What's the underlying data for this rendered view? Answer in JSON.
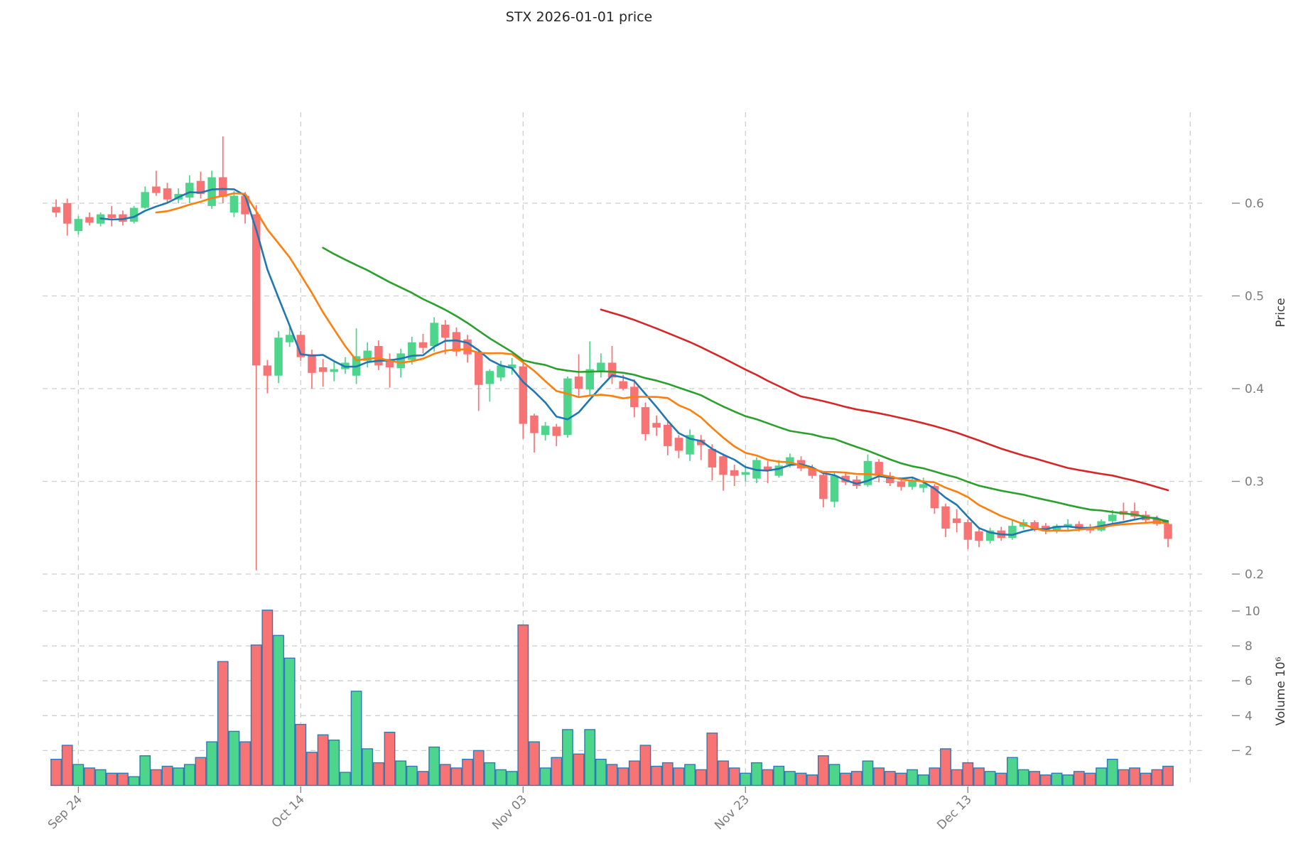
{
  "title": "STX  2026-01-01  price",
  "price_axis": {
    "label": "Price",
    "ticks": [
      0.2,
      0.3,
      0.4,
      0.5,
      0.6
    ]
  },
  "volume_axis": {
    "label": "Volume  10⁶",
    "ticks": [
      2,
      4,
      6,
      8,
      10
    ]
  },
  "x_axis": {
    "ticks": [
      {
        "label": "Sep 24",
        "index": 2
      },
      {
        "label": "Oct 14",
        "index": 22
      },
      {
        "label": "Nov 03",
        "index": 42
      },
      {
        "label": "Nov 23",
        "index": 62
      },
      {
        "label": "Dec 13",
        "index": 82
      }
    ],
    "extra_gridline_index": 102
  },
  "chart_data": {
    "type": "candlestick+volume",
    "title": "STX  2026-01-01  price",
    "start_date": "2025-09-22",
    "end_date": "2025-12-31",
    "frequency": "daily",
    "ylabel": "Price",
    "ylabel_volume": "Volume  10⁶",
    "price_ylim": [
      0.19,
      0.7
    ],
    "volume_ylim_millions": [
      0,
      10.8
    ],
    "grid": "dashed",
    "legend_position": "none",
    "open": [
      0.596,
      0.6,
      0.57,
      0.585,
      0.578,
      0.588,
      0.588,
      0.58,
      0.595,
      0.618,
      0.616,
      0.604,
      0.606,
      0.624,
      0.597,
      0.628,
      0.59,
      0.608,
      0.588,
      0.425,
      0.414,
      0.45,
      0.458,
      0.437,
      0.423,
      0.418,
      0.421,
      0.414,
      0.43,
      0.446,
      0.432,
      0.422,
      0.431,
      0.45,
      0.446,
      0.469,
      0.461,
      0.453,
      0.439,
      0.405,
      0.412,
      0.422,
      0.424,
      0.371,
      0.35,
      0.359,
      0.35,
      0.413,
      0.399,
      0.418,
      0.428,
      0.408,
      0.402,
      0.38,
      0.363,
      0.361,
      0.347,
      0.329,
      0.345,
      0.335,
      0.327,
      0.312,
      0.307,
      0.303,
      0.316,
      0.306,
      0.318,
      0.323,
      0.314,
      0.307,
      0.278,
      0.306,
      0.302,
      0.296,
      0.321,
      0.306,
      0.3,
      0.294,
      0.293,
      0.295,
      0.273,
      0.26,
      0.256,
      0.246,
      0.236,
      0.247,
      0.239,
      0.251,
      0.256,
      0.252,
      0.246,
      0.252,
      0.254,
      0.251,
      0.247,
      0.257,
      0.268,
      0.268,
      0.264,
      0.26,
      0.254
    ],
    "high": [
      0.604,
      0.605,
      0.586,
      0.59,
      0.59,
      0.597,
      0.592,
      0.597,
      0.618,
      0.635,
      0.622,
      0.616,
      0.63,
      0.634,
      0.635,
      0.672,
      0.613,
      0.612,
      0.598,
      0.431,
      0.462,
      0.468,
      0.462,
      0.442,
      0.432,
      0.43,
      0.434,
      0.465,
      0.45,
      0.452,
      0.438,
      0.443,
      0.456,
      0.459,
      0.477,
      0.474,
      0.466,
      0.458,
      0.441,
      0.421,
      0.43,
      0.433,
      0.43,
      0.373,
      0.364,
      0.362,
      0.413,
      0.437,
      0.451,
      0.438,
      0.446,
      0.415,
      0.41,
      0.385,
      0.371,
      0.366,
      0.35,
      0.356,
      0.35,
      0.34,
      0.33,
      0.318,
      0.317,
      0.326,
      0.322,
      0.323,
      0.33,
      0.327,
      0.318,
      0.31,
      0.311,
      0.31,
      0.306,
      0.329,
      0.324,
      0.31,
      0.304,
      0.305,
      0.304,
      0.297,
      0.276,
      0.27,
      0.259,
      0.249,
      0.25,
      0.251,
      0.259,
      0.259,
      0.258,
      0.255,
      0.254,
      0.259,
      0.257,
      0.254,
      0.259,
      0.269,
      0.277,
      0.277,
      0.268,
      0.263,
      0.258
    ],
    "low": [
      0.585,
      0.565,
      0.566,
      0.576,
      0.575,
      0.575,
      0.576,
      0.578,
      0.594,
      0.608,
      0.6,
      0.6,
      0.6,
      0.605,
      0.594,
      0.6,
      0.585,
      0.578,
      0.204,
      0.395,
      0.406,
      0.445,
      0.43,
      0.4,
      0.402,
      0.408,
      0.416,
      0.405,
      0.423,
      0.42,
      0.401,
      0.412,
      0.426,
      0.438,
      0.44,
      0.437,
      0.435,
      0.428,
      0.376,
      0.386,
      0.408,
      0.415,
      0.346,
      0.331,
      0.344,
      0.338,
      0.347,
      0.392,
      0.392,
      0.412,
      0.405,
      0.398,
      0.369,
      0.344,
      0.349,
      0.328,
      0.325,
      0.322,
      0.323,
      0.301,
      0.29,
      0.295,
      0.3,
      0.298,
      0.298,
      0.304,
      0.315,
      0.311,
      0.303,
      0.272,
      0.272,
      0.296,
      0.292,
      0.294,
      0.299,
      0.295,
      0.29,
      0.291,
      0.288,
      0.265,
      0.24,
      0.245,
      0.227,
      0.229,
      0.233,
      0.236,
      0.237,
      0.248,
      0.246,
      0.243,
      0.244,
      0.247,
      0.246,
      0.244,
      0.246,
      0.255,
      0.258,
      0.26,
      0.256,
      0.252,
      0.229
    ],
    "close": [
      0.59,
      0.578,
      0.583,
      0.579,
      0.588,
      0.584,
      0.58,
      0.595,
      0.612,
      0.611,
      0.604,
      0.61,
      0.622,
      0.61,
      0.628,
      0.607,
      0.608,
      0.588,
      0.425,
      0.414,
      0.455,
      0.458,
      0.434,
      0.417,
      0.418,
      0.421,
      0.428,
      0.435,
      0.441,
      0.425,
      0.423,
      0.438,
      0.45,
      0.444,
      0.471,
      0.455,
      0.44,
      0.437,
      0.404,
      0.419,
      0.425,
      0.426,
      0.362,
      0.352,
      0.36,
      0.349,
      0.411,
      0.4,
      0.421,
      0.428,
      0.412,
      0.4,
      0.38,
      0.351,
      0.358,
      0.338,
      0.333,
      0.35,
      0.339,
      0.315,
      0.307,
      0.306,
      0.31,
      0.323,
      0.312,
      0.317,
      0.326,
      0.314,
      0.306,
      0.281,
      0.306,
      0.299,
      0.295,
      0.322,
      0.306,
      0.298,
      0.294,
      0.301,
      0.297,
      0.271,
      0.249,
      0.255,
      0.237,
      0.236,
      0.247,
      0.239,
      0.252,
      0.256,
      0.249,
      0.246,
      0.252,
      0.254,
      0.249,
      0.247,
      0.257,
      0.264,
      0.264,
      0.262,
      0.258,
      0.254,
      0.238
    ],
    "volume_millions": [
      1.5,
      2.3,
      1.2,
      1.0,
      0.9,
      0.7,
      0.7,
      0.5,
      1.7,
      0.9,
      1.1,
      1.0,
      1.2,
      1.6,
      2.5,
      7.1,
      3.1,
      2.5,
      8.05,
      10.05,
      8.6,
      7.3,
      3.5,
      1.9,
      2.9,
      2.6,
      0.75,
      5.4,
      2.1,
      1.3,
      3.05,
      1.4,
      1.1,
      0.8,
      2.2,
      1.2,
      1.0,
      1.5,
      2.0,
      1.3,
      0.9,
      0.8,
      9.2,
      2.5,
      1.0,
      1.6,
      3.2,
      1.8,
      3.2,
      1.5,
      1.2,
      1.0,
      1.4,
      2.3,
      1.1,
      1.3,
      1.0,
      1.2,
      0.9,
      3.0,
      1.4,
      1.0,
      0.7,
      1.3,
      0.9,
      1.1,
      0.8,
      0.7,
      0.6,
      1.7,
      1.2,
      0.7,
      0.8,
      1.4,
      1.0,
      0.8,
      0.7,
      0.9,
      0.6,
      1.0,
      2.1,
      0.9,
      1.3,
      1.0,
      0.8,
      0.7,
      1.6,
      0.9,
      0.8,
      0.6,
      0.7,
      0.6,
      0.8,
      0.7,
      1.0,
      1.5,
      0.9,
      1.0,
      0.7,
      0.9,
      1.1
    ],
    "moving_averages": [
      {
        "name": "ma-fast",
        "window": 5,
        "color": "#1f77b4"
      },
      {
        "name": "ma-medium",
        "window": 10,
        "color": "#ff7f0e"
      },
      {
        "name": "ma-slow",
        "window": 25,
        "color": "#2ca02c"
      },
      {
        "name": "ma-long",
        "window": 50,
        "color": "#d62728"
      }
    ],
    "colors": {
      "up": "#4cd58b",
      "down": "#f87373",
      "volume_edge": "#2d7bb5",
      "grid": "#cecece",
      "tick": "#8a8a8a",
      "tick_label": "#7c7c7c",
      "title": "#262626"
    }
  }
}
